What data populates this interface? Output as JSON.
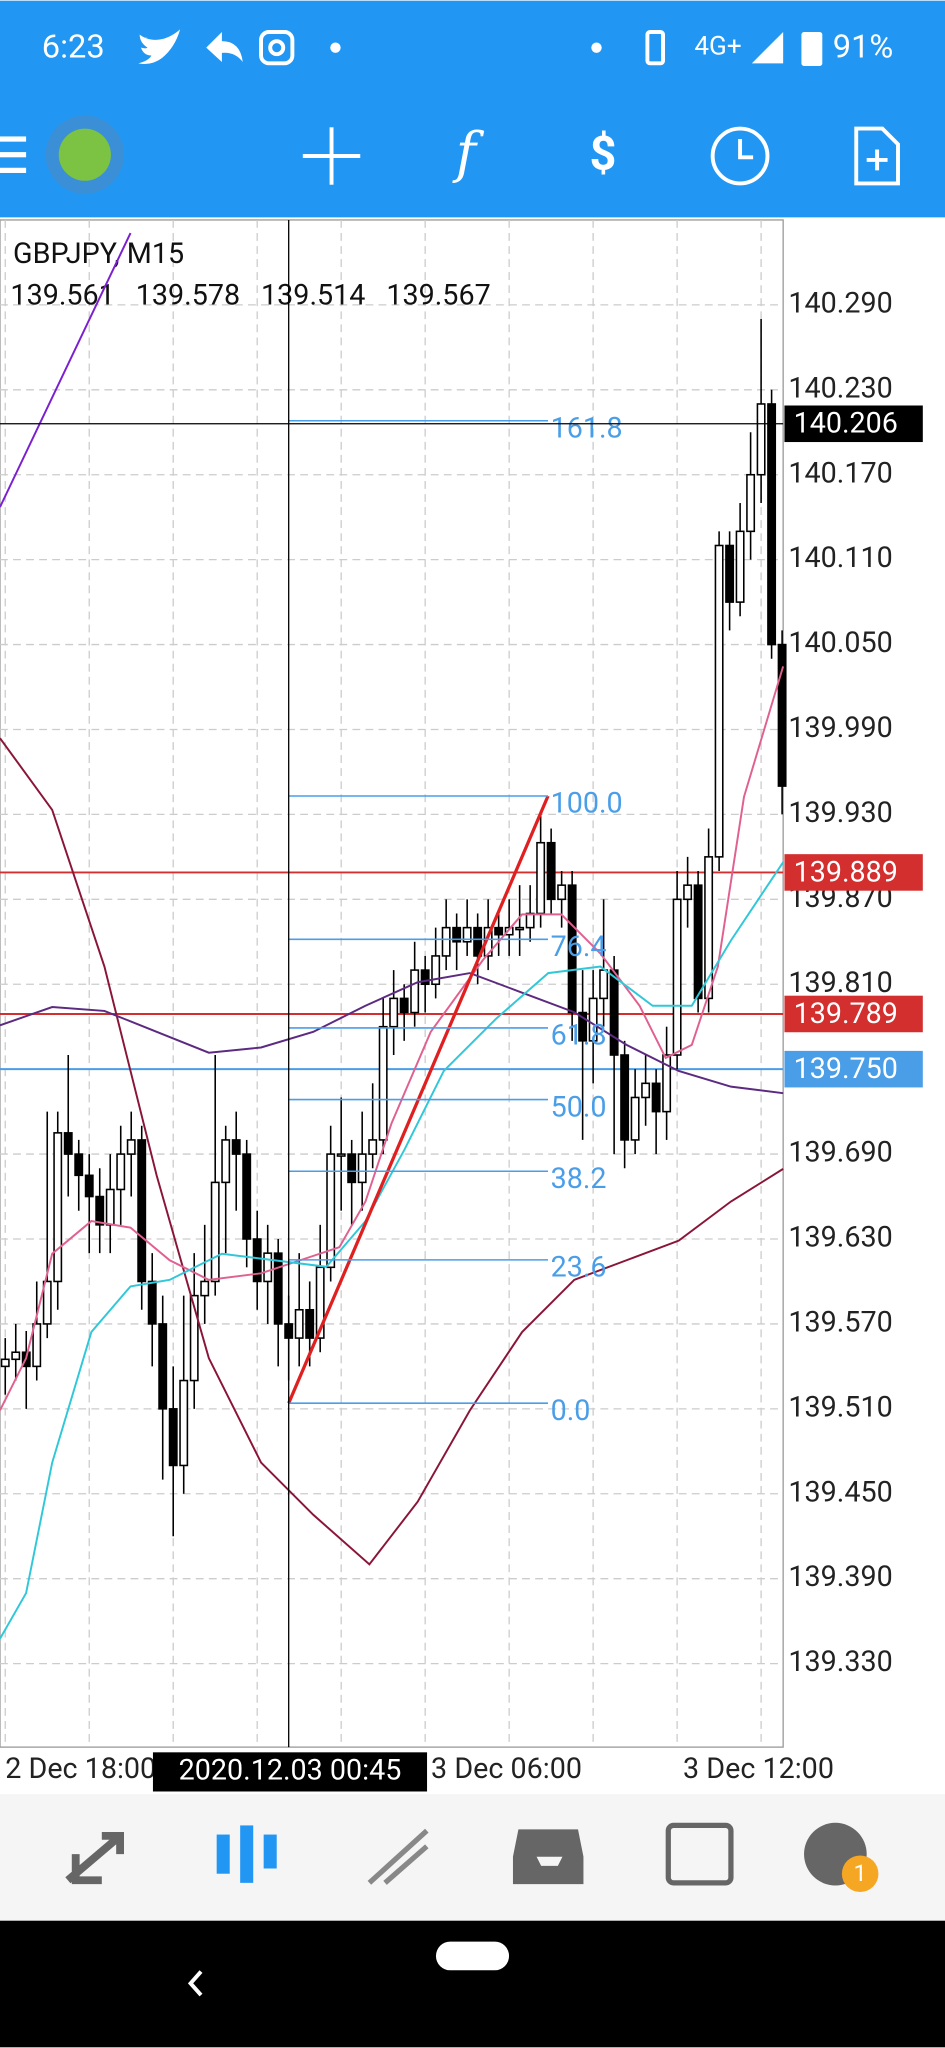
{
  "status_bar": {
    "time": "6:23",
    "network": "4G+",
    "battery": "91%"
  },
  "toolbar": {
    "function_icon": "f"
  },
  "tab_bar": {
    "chat_badge": "1"
  },
  "chart_data": {
    "type": "candlestick",
    "symbol": "GBPJPY, M15",
    "ohlc": [
      139.561,
      139.578,
      139.514,
      139.567
    ],
    "candles": [
      [
        139.54,
        139.56,
        139.52,
        139.545
      ],
      [
        139.545,
        139.57,
        139.53,
        139.55
      ],
      [
        139.55,
        139.565,
        139.51,
        139.54
      ],
      [
        139.54,
        139.6,
        139.53,
        139.57
      ],
      [
        139.57,
        139.72,
        139.56,
        139.6
      ],
      [
        139.6,
        139.72,
        139.58,
        139.705
      ],
      [
        139.705,
        139.76,
        139.66,
        139.69
      ],
      [
        139.69,
        139.7,
        139.65,
        139.675
      ],
      [
        139.675,
        139.69,
        139.62,
        139.66
      ],
      [
        139.66,
        139.68,
        139.62,
        139.64
      ],
      [
        139.64,
        139.69,
        139.62,
        139.665
      ],
      [
        139.665,
        139.71,
        139.64,
        139.69
      ],
      [
        139.69,
        139.72,
        139.66,
        139.7
      ],
      [
        139.7,
        139.71,
        139.58,
        139.6
      ],
      [
        139.6,
        139.62,
        139.54,
        139.57
      ],
      [
        139.57,
        139.59,
        139.46,
        139.51
      ],
      [
        139.51,
        139.54,
        139.42,
        139.47
      ],
      [
        139.47,
        139.59,
        139.45,
        139.53
      ],
      [
        139.53,
        139.62,
        139.51,
        139.59
      ],
      [
        139.59,
        139.64,
        139.57,
        139.6
      ],
      [
        139.6,
        139.76,
        139.59,
        139.67
      ],
      [
        139.67,
        139.71,
        139.62,
        139.7
      ],
      [
        139.7,
        139.72,
        139.65,
        139.69
      ],
      [
        139.69,
        139.7,
        139.61,
        139.63
      ],
      [
        139.63,
        139.65,
        139.58,
        139.6
      ],
      [
        139.6,
        139.64,
        139.57,
        139.62
      ],
      [
        139.62,
        139.63,
        139.54,
        139.57
      ],
      [
        139.57,
        139.59,
        139.53,
        139.56
      ],
      [
        139.56,
        139.62,
        139.54,
        139.58
      ],
      [
        139.58,
        139.6,
        139.54,
        139.56
      ],
      [
        139.56,
        139.64,
        139.55,
        139.61
      ],
      [
        139.61,
        139.71,
        139.6,
        139.69
      ],
      [
        139.69,
        139.73,
        139.65,
        139.69
      ],
      [
        139.69,
        139.7,
        139.64,
        139.67
      ],
      [
        139.67,
        139.72,
        139.65,
        139.69
      ],
      [
        139.69,
        139.74,
        139.68,
        139.7
      ],
      [
        139.7,
        139.8,
        139.69,
        139.78
      ],
      [
        139.78,
        139.82,
        139.76,
        139.8
      ],
      [
        139.8,
        139.81,
        139.77,
        139.79
      ],
      [
        139.79,
        139.84,
        139.78,
        139.82
      ],
      [
        139.82,
        139.83,
        139.79,
        139.81
      ],
      [
        139.81,
        139.85,
        139.8,
        139.83
      ],
      [
        139.83,
        139.87,
        139.82,
        139.85
      ],
      [
        139.85,
        139.86,
        139.82,
        139.84
      ],
      [
        139.84,
        139.87,
        139.83,
        139.85
      ],
      [
        139.85,
        139.86,
        139.81,
        139.83
      ],
      [
        139.83,
        139.87,
        139.82,
        139.85
      ],
      [
        139.85,
        139.86,
        139.83,
        139.845
      ],
      [
        139.845,
        139.87,
        139.83,
        139.85
      ],
      [
        139.85,
        139.88,
        139.83,
        139.85
      ],
      [
        139.85,
        139.88,
        139.84,
        139.86
      ],
      [
        139.86,
        139.93,
        139.85,
        139.91
      ],
      [
        139.91,
        139.92,
        139.86,
        139.87
      ],
      [
        139.87,
        139.89,
        139.85,
        139.88
      ],
      [
        139.88,
        139.89,
        139.77,
        139.79
      ],
      [
        139.79,
        139.82,
        139.7,
        139.77
      ],
      [
        139.77,
        139.82,
        139.74,
        139.8
      ],
      [
        139.8,
        139.87,
        139.78,
        139.82
      ],
      [
        139.82,
        139.83,
        139.69,
        139.76
      ],
      [
        139.76,
        139.77,
        139.68,
        139.7
      ],
      [
        139.7,
        139.75,
        139.69,
        139.73
      ],
      [
        139.73,
        139.76,
        139.71,
        139.74
      ],
      [
        139.74,
        139.75,
        139.69,
        139.72
      ],
      [
        139.72,
        139.78,
        139.7,
        139.76
      ],
      [
        139.76,
        139.89,
        139.75,
        139.87
      ],
      [
        139.87,
        139.9,
        139.85,
        139.88
      ],
      [
        139.88,
        139.89,
        139.79,
        139.8
      ],
      [
        139.8,
        139.92,
        139.79,
        139.9
      ],
      [
        139.9,
        140.13,
        139.89,
        140.12
      ],
      [
        140.12,
        140.13,
        140.06,
        140.08
      ],
      [
        140.08,
        140.15,
        140.07,
        140.13
      ],
      [
        140.13,
        140.2,
        140.11,
        140.17
      ],
      [
        140.17,
        140.28,
        140.15,
        140.22
      ],
      [
        140.22,
        140.23,
        140.04,
        140.05
      ],
      [
        140.05,
        140.06,
        139.93,
        139.95
      ]
    ],
    "ylim": [
      139.271,
      140.35
    ],
    "yticks": [
      {
        "value": 140.29,
        "label": "140.290"
      },
      {
        "value": 140.23,
        "label": "140.230"
      },
      {
        "value": 140.17,
        "label": "140.170"
      },
      {
        "value": 140.11,
        "label": "140.110"
      },
      {
        "value": 140.05,
        "label": "140.050"
      },
      {
        "value": 139.99,
        "label": "139.990"
      },
      {
        "value": 139.93,
        "label": "139.930"
      },
      {
        "value": 139.87,
        "label": "139.870"
      },
      {
        "value": 139.81,
        "label": "139.810"
      },
      {
        "value": 139.75,
        "label": "139.750"
      },
      {
        "value": 139.69,
        "label": "139.690"
      },
      {
        "value": 139.63,
        "label": "139.630"
      },
      {
        "value": 139.57,
        "label": "139.570"
      },
      {
        "value": 139.51,
        "label": "139.510"
      },
      {
        "value": 139.45,
        "label": "139.450"
      },
      {
        "value": 139.39,
        "label": "139.390"
      },
      {
        "value": 139.33,
        "label": "139.330"
      }
    ],
    "xlim": [
      -0.5,
      74.1
    ],
    "xticks": [
      {
        "value": 0,
        "label": "2 Dec 18:00"
      },
      {
        "value": 48,
        "label": "3 Dec 06:00"
      },
      {
        "value": 72,
        "label": "3 Dec 12:00"
      }
    ],
    "xgrid": [
      0,
      8,
      16,
      24,
      32,
      40,
      48,
      56,
      64,
      72
    ],
    "grid": true,
    "crosshair": {
      "time_label": "2020.12.03 00:45",
      "x": 27,
      "price": 140.206
    },
    "price_lines": [
      {
        "price": 139.889,
        "color": "#d32f2f"
      },
      {
        "price": 139.789,
        "color": "#d32f2f"
      },
      {
        "price": {
          "value": 139.75,
          "label": "139.750"
        },
        "color": "#4a9ee8"
      }
    ],
    "fibonacci": {
      "start": 27,
      "end": 51.7,
      "low": 139.514,
      "high": 139.943,
      "color": "#4a9ee8",
      "trend_color": "#e02020",
      "levels": [
        161.8,
        {
          "value": 100,
          "label": "100.0"
        },
        76.4,
        61.8,
        {
          "value": 50,
          "label": "50.0"
        },
        38.2,
        23.6,
        {
          "value": 0,
          "label": "0.0"
        }
      ]
    }
  }
}
